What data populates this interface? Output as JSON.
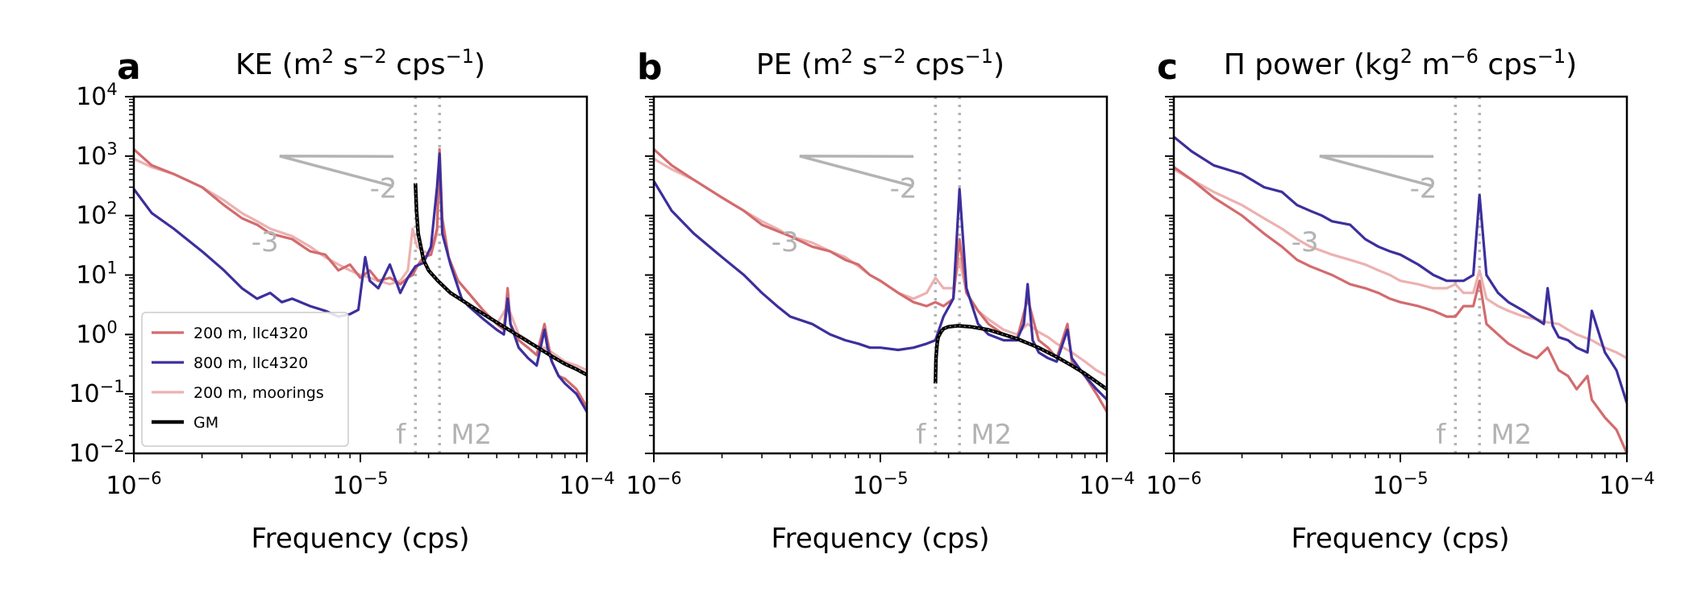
{
  "figure": {
    "xlabel": "Frequency (cps)",
    "xlim": [
      1e-06,
      0.0001
    ],
    "ylim": [
      0.01,
      10000.0
    ],
    "yscale": "log",
    "xscale": "log",
    "x_ticks": [
      {
        "base": "10",
        "exp": "−6",
        "value": 1e-06
      },
      {
        "base": "10",
        "exp": "−5",
        "value": 1e-05
      },
      {
        "base": "10",
        "exp": "−4",
        "value": 0.0001
      }
    ],
    "y_ticks": [
      {
        "base": "10",
        "exp": "4",
        "value": 10000.0
      },
      {
        "base": "10",
        "exp": "3",
        "value": 1000.0
      },
      {
        "base": "10",
        "exp": "2",
        "value": 100.0
      },
      {
        "base": "10",
        "exp": "1",
        "value": 10.0
      },
      {
        "base": "10",
        "exp": "0",
        "value": 1.0
      },
      {
        "base": "10",
        "exp": "−1",
        "value": 0.1
      },
      {
        "base": "10",
        "exp": "−2",
        "value": 0.01
      }
    ],
    "f_freq": 1.75e-05,
    "m2_freq": 2.236e-05,
    "f_label": "f",
    "m2_label": "M2",
    "slope_labels": {
      "minus2": "-2",
      "minus3": "-3"
    },
    "colors": {
      "s200": "#d36b6e",
      "s800": "#3c2f9c",
      "moor": "#ebb2b1",
      "gm": "#000000",
      "guide": "#b3b3b3"
    },
    "legend": {
      "placement": "lower-left",
      "entries": [
        {
          "key": "s200",
          "label": "200 m, llc4320"
        },
        {
          "key": "s800",
          "label": "800 m, llc4320"
        },
        {
          "key": "moor",
          "label": "200 m, moorings"
        },
        {
          "key": "gm",
          "label": "GM"
        }
      ]
    }
  },
  "chart_data": [
    {
      "type": "line",
      "letter": "a",
      "title": "KE (m² s⁻² cps⁻¹)",
      "title_parts": {
        "pre": "KE (m",
        "s1": "2",
        "mid": " s",
        "s2": "−2",
        "mid2": " cps",
        "s3": "−1",
        "post": ")"
      },
      "legend_shown": true,
      "series": [
        {
          "key": "s200",
          "name": "200 m, llc4320",
          "x": [
            1e-06,
            1.2e-06,
            1.5e-06,
            2e-06,
            2.5e-06,
            3e-06,
            3.5e-06,
            4e-06,
            5e-06,
            6e-06,
            7e-06,
            8e-06,
            9e-06,
            1e-05,
            1.1e-05,
            1.2e-05,
            1.35e-05,
            1.5e-05,
            1.62e-05,
            1.7e-05,
            1.78e-05,
            1.9e-05,
            2.05e-05,
            2.18e-05,
            2.236e-05,
            2.3e-05,
            2.45e-05,
            2.7e-05,
            3e-05,
            3.5e-05,
            4e-05,
            4.3e-05,
            4.47e-05,
            4.6e-05,
            5e-05,
            5.5e-05,
            6e-05,
            6.5e-05,
            6.7e-05,
            7e-05,
            7.5e-05,
            8e-05,
            9e-05,
            0.0001
          ],
          "y": [
            1300,
            700,
            500,
            300,
            150,
            90,
            70,
            50,
            40,
            25,
            22,
            12,
            15,
            9,
            12,
            8,
            9,
            7,
            9,
            10,
            14,
            20,
            22,
            60,
            1300,
            90,
            20,
            8,
            5,
            2.5,
            1.5,
            1.2,
            6,
            1.5,
            0.8,
            0.6,
            0.45,
            1.5,
            0.8,
            0.35,
            0.2,
            0.18,
            0.12,
            0.06
          ]
        },
        {
          "key": "s800",
          "name": "800 m, llc4320",
          "x": [
            1e-06,
            1.2e-06,
            1.5e-06,
            2e-06,
            2.5e-06,
            3e-06,
            3.5e-06,
            4e-06,
            4.5e-06,
            5e-06,
            6e-06,
            7e-06,
            8e-06,
            9e-06,
            9.8e-06,
            1.05e-05,
            1.1e-05,
            1.2e-05,
            1.35e-05,
            1.5e-05,
            1.62e-05,
            1.75e-05,
            1.9e-05,
            2.05e-05,
            2.18e-05,
            2.236e-05,
            2.3e-05,
            2.5e-05,
            2.8e-05,
            3e-05,
            3.5e-05,
            4e-05,
            4.3e-05,
            4.47e-05,
            4.6e-05,
            5e-05,
            5.5e-05,
            6e-05,
            6.5e-05,
            6.7e-05,
            7e-05,
            7.5e-05,
            8e-05,
            9e-05,
            0.0001
          ],
          "y": [
            280,
            110,
            60,
            25,
            12,
            6,
            4,
            5,
            3.5,
            4,
            3,
            2.5,
            2,
            2.2,
            2.6,
            20,
            8,
            6,
            15,
            5,
            9,
            14,
            16,
            30,
            300,
            1100,
            50,
            15,
            4,
            3,
            1.8,
            1.2,
            1.0,
            4,
            1.5,
            0.6,
            0.4,
            0.3,
            1.2,
            0.6,
            0.35,
            0.2,
            0.15,
            0.1,
            0.05
          ]
        },
        {
          "key": "moor",
          "name": "200 m, moorings",
          "x": [
            1e-06,
            1.2e-06,
            1.5e-06,
            2e-06,
            2.5e-06,
            3e-06,
            3.5e-06,
            4e-06,
            5e-06,
            6e-06,
            7e-06,
            8e-06,
            9e-06,
            1e-05,
            1.1e-05,
            1.2e-05,
            1.35e-05,
            1.5e-05,
            1.62e-05,
            1.7e-05,
            1.78e-05,
            1.9e-05,
            2.05e-05,
            2.18e-05,
            2.236e-05,
            2.3e-05,
            2.45e-05,
            2.7e-05,
            3e-05,
            3.5e-05,
            4e-05,
            4.47e-05,
            5e-05,
            5.5e-05,
            6e-05,
            6.5e-05,
            7e-05,
            8e-05,
            9e-05,
            0.0001
          ],
          "y": [
            900,
            650,
            500,
            300,
            180,
            110,
            80,
            60,
            45,
            30,
            20,
            15,
            12,
            10,
            9,
            8,
            7,
            8,
            12,
            60,
            30,
            25,
            22,
            50,
            700,
            80,
            20,
            8,
            5,
            2.5,
            1.5,
            3,
            1.0,
            0.8,
            0.6,
            0.6,
            0.5,
            0.35,
            0.3,
            0.25
          ]
        },
        {
          "key": "gm",
          "name": "GM",
          "x": [
            1.75e-05,
            1.77e-05,
            1.8e-05,
            1.9e-05,
            2e-05,
            2.2e-05,
            2.5e-05,
            3e-05,
            3.5e-05,
            4e-05,
            5e-05,
            6e-05,
            7e-05,
            8e-05,
            9e-05,
            0.0001
          ],
          "y": [
            350,
            120,
            50,
            18,
            12,
            8,
            5,
            3.2,
            2.2,
            1.6,
            0.95,
            0.62,
            0.43,
            0.32,
            0.26,
            0.21
          ]
        }
      ]
    },
    {
      "type": "line",
      "letter": "b",
      "title": "PE (m² s⁻² cps⁻¹)",
      "title_parts": {
        "pre": "PE (m",
        "s1": "2",
        "mid": " s",
        "s2": "−2",
        "mid2": " cps",
        "s3": "−1",
        "post": ")"
      },
      "legend_shown": false,
      "series": [
        {
          "key": "s200",
          "name": "200 m, llc4320",
          "x": [
            1e-06,
            1.2e-06,
            1.5e-06,
            2e-06,
            2.5e-06,
            3e-06,
            3.5e-06,
            4e-06,
            5e-06,
            6e-06,
            7e-06,
            8e-06,
            9e-06,
            1e-05,
            1.2e-05,
            1.4e-05,
            1.6e-05,
            1.75e-05,
            1.9e-05,
            2.1e-05,
            2.236e-05,
            2.4e-05,
            2.7e-05,
            3e-05,
            3.5e-05,
            4e-05,
            4.47e-05,
            5e-05,
            5.5e-05,
            6e-05,
            6.7e-05,
            7e-05,
            8e-05,
            9e-05,
            0.0001
          ],
          "y": [
            1300,
            700,
            400,
            200,
            120,
            70,
            55,
            45,
            30,
            25,
            18,
            15,
            10,
            8,
            5,
            3.5,
            3,
            3.5,
            3,
            4,
            40,
            5,
            2.5,
            1.5,
            1.0,
            0.8,
            4,
            0.8,
            0.6,
            0.4,
            1.5,
            0.35,
            0.2,
            0.1,
            0.05
          ]
        },
        {
          "key": "s800",
          "name": "800 m, llc4320",
          "x": [
            1e-06,
            1.2e-06,
            1.5e-06,
            2e-06,
            2.5e-06,
            3e-06,
            3.5e-06,
            4e-06,
            5e-06,
            6e-06,
            7e-06,
            8e-06,
            9e-06,
            1e-05,
            1.2e-05,
            1.4e-05,
            1.6e-05,
            1.75e-05,
            1.9e-05,
            2.1e-05,
            2.236e-05,
            2.4e-05,
            2.7e-05,
            3e-05,
            3.5e-05,
            4e-05,
            4.3e-05,
            4.47e-05,
            4.7e-05,
            5e-05,
            5.5e-05,
            6e-05,
            6.7e-05,
            7e-05,
            8e-05,
            9e-05,
            0.0001
          ],
          "y": [
            380,
            120,
            50,
            20,
            10,
            5,
            3,
            2,
            1.5,
            1.0,
            0.8,
            0.7,
            0.6,
            0.6,
            0.55,
            0.6,
            0.7,
            0.8,
            2,
            4,
            280,
            6,
            1.5,
            1.0,
            0.8,
            0.8,
            1.5,
            7,
            0.8,
            0.5,
            0.4,
            0.35,
            1.2,
            0.4,
            0.2,
            0.12,
            0.08
          ]
        },
        {
          "key": "moor",
          "name": "200 m, moorings",
          "x": [
            1e-06,
            1.2e-06,
            1.5e-06,
            2e-06,
            2.5e-06,
            3e-06,
            3.5e-06,
            4e-06,
            5e-06,
            6e-06,
            7e-06,
            8e-06,
            9e-06,
            1e-05,
            1.2e-05,
            1.4e-05,
            1.6e-05,
            1.75e-05,
            1.9e-05,
            2.1e-05,
            2.236e-05,
            2.4e-05,
            2.7e-05,
            3e-05,
            3.5e-05,
            4e-05,
            4.47e-05,
            5e-05,
            5.5e-05,
            6e-05,
            7e-05,
            8e-05,
            9e-05,
            0.0001
          ],
          "y": [
            900,
            600,
            400,
            200,
            120,
            80,
            60,
            45,
            35,
            25,
            20,
            14,
            10,
            8,
            5,
            4,
            5,
            9,
            6,
            6,
            18,
            5,
            2.5,
            1.8,
            1.2,
            1.0,
            1.5,
            1.1,
            0.9,
            0.7,
            0.5,
            0.35,
            0.25,
            0.2
          ]
        },
        {
          "key": "gm",
          "name": "GM",
          "x": [
            1.75e-05,
            1.76e-05,
            1.78e-05,
            1.8e-05,
            1.85e-05,
            1.9e-05,
            2e-05,
            2.2e-05,
            2.5e-05,
            3e-05,
            3.5e-05,
            4e-05,
            5e-05,
            6e-05,
            7e-05,
            8e-05,
            9e-05,
            0.0001
          ],
          "y": [
            0.15,
            0.4,
            0.7,
            0.9,
            1.1,
            1.25,
            1.35,
            1.4,
            1.35,
            1.2,
            1.0,
            0.85,
            0.6,
            0.42,
            0.3,
            0.22,
            0.16,
            0.12
          ]
        }
      ]
    },
    {
      "type": "line",
      "letter": "c",
      "title": "Π power (kg² m⁻⁶ cps⁻¹)",
      "title_parts": {
        "pre": "Π power (kg",
        "s1": "2",
        "mid": " m",
        "s2": "−6",
        "mid2": " cps",
        "s3": "−1",
        "post": ")"
      },
      "legend_shown": false,
      "series": [
        {
          "key": "s200",
          "name": "200 m, llc4320",
          "x": [
            1e-06,
            1.2e-06,
            1.5e-06,
            2e-06,
            2.5e-06,
            3e-06,
            3.5e-06,
            4e-06,
            5e-06,
            6e-06,
            7e-06,
            8e-06,
            9e-06,
            1e-05,
            1.2e-05,
            1.4e-05,
            1.6e-05,
            1.75e-05,
            1.9e-05,
            2.1e-05,
            2.236e-05,
            2.4e-05,
            2.7e-05,
            3e-05,
            3.5e-05,
            4e-05,
            4.47e-05,
            5e-05,
            5.5e-05,
            6e-05,
            6.7e-05,
            7e-05,
            8e-05,
            9e-05,
            0.0001
          ],
          "y": [
            650,
            400,
            200,
            100,
            50,
            30,
            18,
            14,
            10,
            7,
            6,
            5,
            4,
            3.5,
            3,
            2.5,
            2,
            2,
            3,
            3,
            8,
            1.5,
            1.0,
            0.7,
            0.5,
            0.4,
            0.6,
            0.25,
            0.2,
            0.12,
            0.2,
            0.08,
            0.04,
            0.025,
            0.01
          ]
        },
        {
          "key": "s800",
          "name": "800 m, llc4320",
          "x": [
            1e-06,
            1.2e-06,
            1.5e-06,
            2e-06,
            2.5e-06,
            3e-06,
            3.5e-06,
            4e-06,
            4.5e-06,
            5e-06,
            6e-06,
            7e-06,
            8e-06,
            9e-06,
            1e-05,
            1.2e-05,
            1.4e-05,
            1.6e-05,
            1.75e-05,
            1.9e-05,
            2.1e-05,
            2.236e-05,
            2.4e-05,
            2.7e-05,
            3e-05,
            3.5e-05,
            4e-05,
            4.3e-05,
            4.47e-05,
            4.7e-05,
            5e-05,
            5.5e-05,
            6e-05,
            6.7e-05,
            7e-05,
            8e-05,
            8.5e-05,
            9e-05,
            0.0001
          ],
          "y": [
            2100,
            1200,
            700,
            500,
            300,
            250,
            150,
            120,
            100,
            80,
            70,
            40,
            30,
            25,
            22,
            15,
            10,
            8,
            8,
            8,
            10,
            220,
            10,
            5,
            3.5,
            2.5,
            1.8,
            1.5,
            6,
            1.4,
            0.9,
            0.8,
            0.6,
            0.5,
            2.5,
            0.5,
            0.35,
            0.25,
            0.07
          ]
        },
        {
          "key": "moor",
          "name": "200 m, moorings",
          "x": [
            1e-06,
            1.2e-06,
            1.5e-06,
            2e-06,
            2.5e-06,
            3e-06,
            3.5e-06,
            4e-06,
            5e-06,
            6e-06,
            7e-06,
            8e-06,
            9e-06,
            1e-05,
            1.2e-05,
            1.4e-05,
            1.6e-05,
            1.75e-05,
            1.9e-05,
            2.1e-05,
            2.236e-05,
            2.4e-05,
            2.7e-05,
            3e-05,
            3.5e-05,
            4e-05,
            4.47e-05,
            5e-05,
            5.5e-05,
            6e-05,
            7e-05,
            8e-05,
            9e-05,
            0.0001
          ],
          "y": [
            600,
            400,
            250,
            150,
            90,
            60,
            40,
            30,
            22,
            18,
            15,
            12,
            10,
            8,
            7,
            6,
            6,
            7,
            5,
            5,
            12,
            4,
            3,
            2.5,
            2,
            1.8,
            1.6,
            1.5,
            1.2,
            1.0,
            0.8,
            0.6,
            0.5,
            0.4
          ]
        }
      ]
    }
  ]
}
